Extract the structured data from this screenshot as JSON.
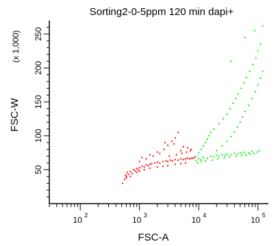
{
  "chart_data": {
    "type": "scatter",
    "title": "Sorting2-0-5ppm 120 min dapi+",
    "xlabel": "FSC-A",
    "ylabel": "FSC-W",
    "ylabel_multiplier": "(x 1,000)",
    "x_scale": "log",
    "xlim": [
      30,
      150000
    ],
    "ylim": [
      0,
      270
    ],
    "x_ticks": [
      {
        "value": 100,
        "base": "10",
        "exp": "2"
      },
      {
        "value": 1000,
        "base": "10",
        "exp": "3"
      },
      {
        "value": 10000,
        "base": "10",
        "exp": "4"
      },
      {
        "value": 100000,
        "base": "10",
        "exp": "5"
      }
    ],
    "y_ticks": [
      50,
      100,
      150,
      200,
      250
    ],
    "grid": false,
    "legend": "none",
    "series": [
      {
        "color": "#ff0000",
        "points": [
          [
            520,
            30
          ],
          [
            560,
            36
          ],
          [
            600,
            40
          ],
          [
            650,
            43
          ],
          [
            700,
            47
          ],
          [
            750,
            44
          ],
          [
            800,
            50
          ],
          [
            850,
            48
          ],
          [
            900,
            52
          ],
          [
            950,
            50
          ],
          [
            1000,
            53
          ],
          [
            1100,
            55
          ],
          [
            1200,
            54
          ],
          [
            1300,
            57
          ],
          [
            1400,
            56
          ],
          [
            1500,
            58
          ],
          [
            1600,
            59
          ],
          [
            1800,
            60
          ],
          [
            2000,
            61
          ],
          [
            2200,
            60
          ],
          [
            2500,
            62
          ],
          [
            2800,
            63
          ],
          [
            3000,
            62
          ],
          [
            3300,
            64
          ],
          [
            3600,
            63
          ],
          [
            4000,
            65
          ],
          [
            4500,
            64
          ],
          [
            5000,
            66
          ],
          [
            5500,
            65
          ],
          [
            6000,
            66
          ],
          [
            6500,
            67
          ],
          [
            7000,
            66
          ],
          [
            7500,
            67
          ],
          [
            8000,
            67
          ],
          [
            8500,
            68
          ],
          [
            900,
            46
          ],
          [
            1000,
            48
          ],
          [
            1200,
            50
          ],
          [
            1500,
            52
          ],
          [
            2000,
            54
          ],
          [
            2500,
            55
          ],
          [
            3000,
            56
          ],
          [
            4000,
            58
          ],
          [
            5000,
            59
          ],
          [
            6000,
            60
          ],
          [
            700,
            40
          ],
          [
            1000,
            62
          ],
          [
            1300,
            66
          ],
          [
            1700,
            70
          ],
          [
            2200,
            74
          ],
          [
            2600,
            80
          ],
          [
            3000,
            86
          ],
          [
            3500,
            92
          ],
          [
            4000,
            97
          ],
          [
            4500,
            105
          ],
          [
            5000,
            78
          ],
          [
            1100,
            68
          ],
          [
            1500,
            72
          ],
          [
            2000,
            76
          ],
          [
            3200,
            70
          ],
          [
            4200,
            72
          ],
          [
            5200,
            74
          ],
          [
            6200,
            76
          ],
          [
            7200,
            78
          ],
          [
            2700,
            90
          ],
          [
            3800,
            88
          ],
          [
            5500,
            84
          ],
          [
            6500,
            82
          ],
          [
            7500,
            80
          ],
          [
            600,
            38
          ],
          [
            580,
            42
          ],
          [
            620,
            46
          ]
        ]
      },
      {
        "color": "#00ee00",
        "points": [
          [
            9000,
            64
          ],
          [
            10000,
            66
          ],
          [
            11000,
            65
          ],
          [
            12000,
            68
          ],
          [
            14000,
            67
          ],
          [
            16000,
            70
          ],
          [
            18000,
            69
          ],
          [
            20000,
            71
          ],
          [
            22000,
            70
          ],
          [
            25000,
            72
          ],
          [
            28000,
            71
          ],
          [
            30000,
            73
          ],
          [
            35000,
            72
          ],
          [
            40000,
            74
          ],
          [
            45000,
            73
          ],
          [
            50000,
            75
          ],
          [
            55000,
            74
          ],
          [
            60000,
            76
          ],
          [
            70000,
            75
          ],
          [
            80000,
            77
          ],
          [
            9000,
            70
          ],
          [
            10000,
            75
          ],
          [
            11000,
            80
          ],
          [
            12000,
            85
          ],
          [
            13000,
            90
          ],
          [
            14000,
            95
          ],
          [
            15000,
            100
          ],
          [
            16000,
            105
          ],
          [
            20000,
            78
          ],
          [
            25000,
            85
          ],
          [
            30000,
            92
          ],
          [
            35000,
            99
          ],
          [
            40000,
            106
          ],
          [
            45000,
            113
          ],
          [
            50000,
            120
          ],
          [
            55000,
            128
          ],
          [
            60000,
            136
          ],
          [
            70000,
            145
          ],
          [
            80000,
            155
          ],
          [
            90000,
            165
          ],
          [
            100000,
            175
          ],
          [
            110000,
            185
          ],
          [
            120000,
            195
          ],
          [
            18000,
            110
          ],
          [
            22000,
            118
          ],
          [
            26000,
            125
          ],
          [
            30000,
            132
          ],
          [
            34000,
            140
          ],
          [
            38000,
            148
          ],
          [
            42000,
            155
          ],
          [
            46000,
            162
          ],
          [
            52000,
            170
          ],
          [
            58000,
            178
          ],
          [
            64000,
            186
          ],
          [
            72000,
            195
          ],
          [
            82000,
            205
          ],
          [
            92000,
            215
          ],
          [
            100000,
            225
          ],
          [
            110000,
            235
          ],
          [
            35000,
            210
          ],
          [
            60000,
            245
          ],
          [
            88000,
            255
          ],
          [
            120000,
            262
          ],
          [
            9500,
            60
          ],
          [
            11000,
            62
          ],
          [
            13000,
            63
          ],
          [
            17000,
            64
          ],
          [
            21000,
            66
          ],
          [
            27000,
            68
          ],
          [
            33000,
            69
          ],
          [
            43000,
            70
          ],
          [
            53000,
            71
          ],
          [
            63000,
            72
          ],
          [
            73000,
            73
          ],
          [
            85000,
            74
          ],
          [
            95000,
            76
          ],
          [
            105000,
            78
          ]
        ]
      }
    ]
  }
}
